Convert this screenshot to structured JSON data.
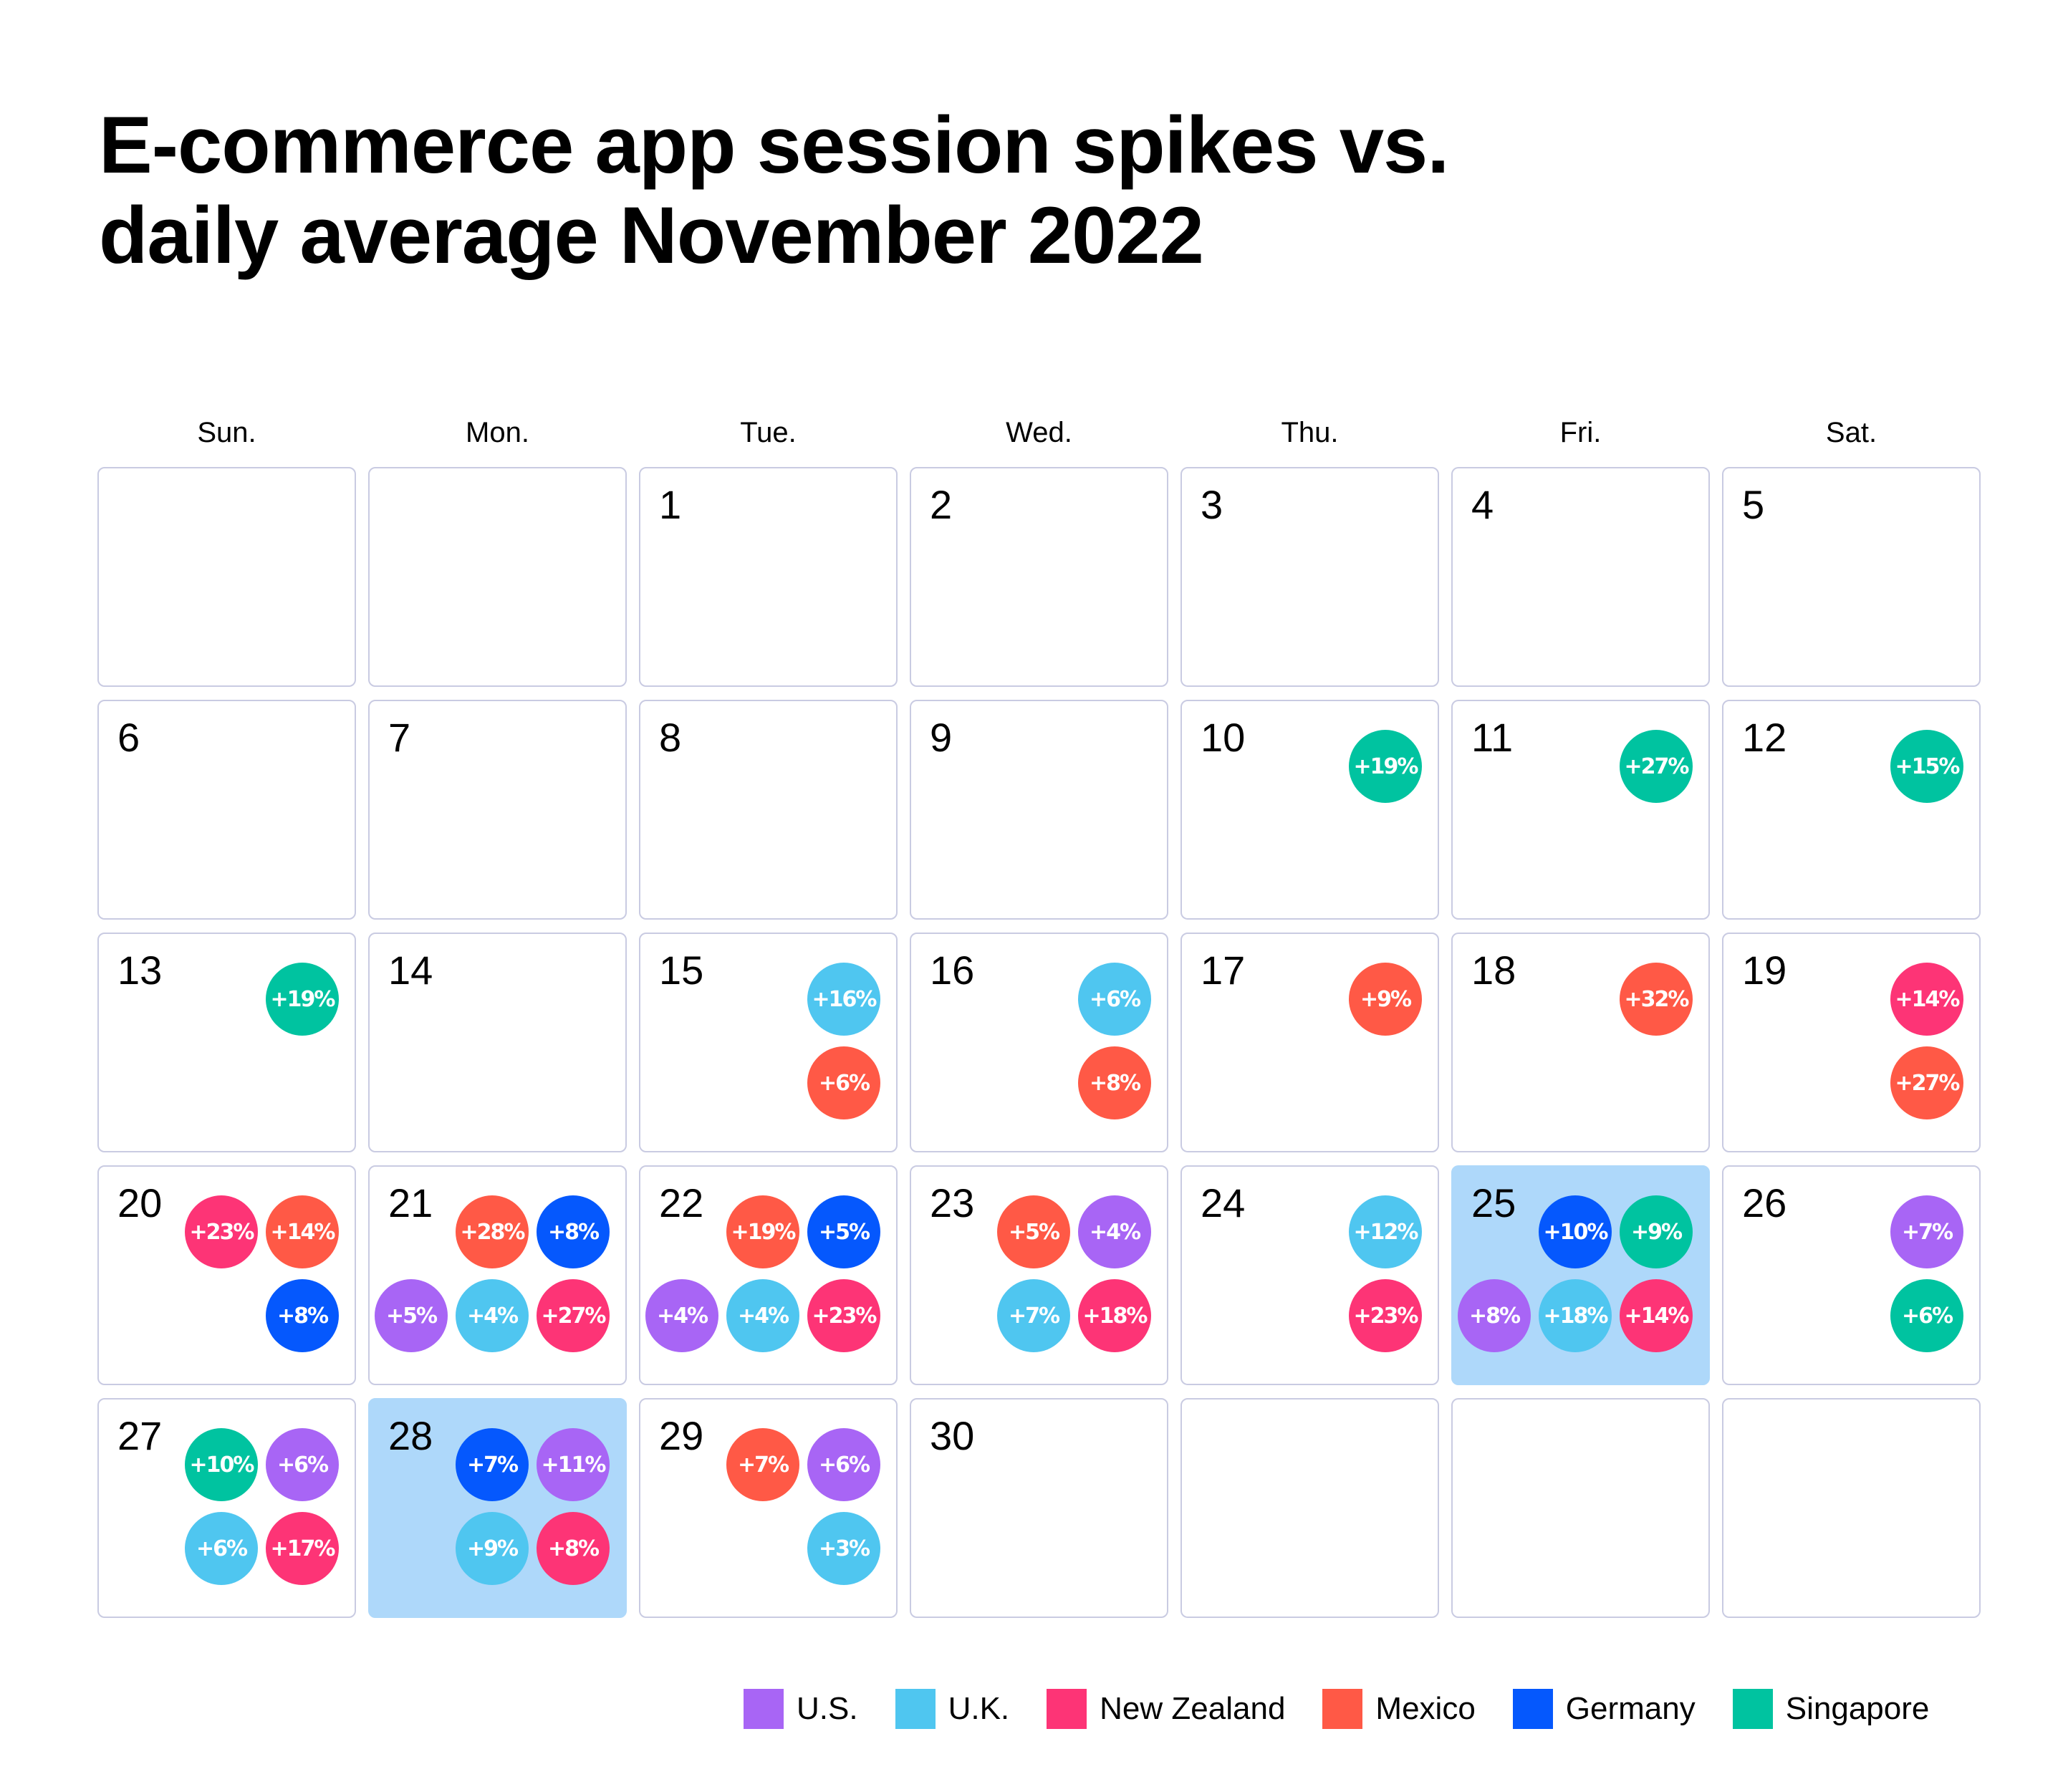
{
  "title": [
    "E-commerce app session spikes vs.",
    "daily average November 2022"
  ],
  "weekdays": [
    "Sun.",
    "Mon.",
    "Tue.",
    "Wed.",
    "Thu.",
    "Fri.",
    "Sat."
  ],
  "highlight_color": "#aed8fa",
  "colors": {
    "U.S.": "#a865f5",
    "U.K.": "#4fc6f0",
    "New Zealand": "#fd3476",
    "Mexico": "#ff5946",
    "Germany": "#0558fd",
    "Singapore": "#00c3a0"
  },
  "legend": [
    "U.S.",
    "U.K.",
    "New Zealand",
    "Mexico",
    "Germany",
    "Singapore"
  ],
  "chart_data": {
    "type": "table",
    "month": "November 2022",
    "first_weekday_index": 2,
    "days_in_month": 30,
    "highlighted_days": [
      25,
      28
    ],
    "days": {
      "10": [
        {
          "series": "Singapore",
          "label": "+19%",
          "value": 19
        }
      ],
      "11": [
        {
          "series": "Singapore",
          "label": "+27%",
          "value": 27
        }
      ],
      "12": [
        {
          "series": "Singapore",
          "label": "+15%",
          "value": 15
        }
      ],
      "13": [
        {
          "series": "Singapore",
          "label": "+19%",
          "value": 19
        }
      ],
      "15": [
        {
          "series": "U.K.",
          "label": "+16%",
          "value": 16
        },
        {
          "series": "Mexico",
          "label": "+6%",
          "value": 6
        }
      ],
      "16": [
        {
          "series": "U.K.",
          "label": "+6%",
          "value": 6
        },
        {
          "series": "Mexico",
          "label": "+8%",
          "value": 8
        }
      ],
      "17": [
        {
          "series": "Mexico",
          "label": "+9%",
          "value": 9
        }
      ],
      "18": [
        {
          "series": "Mexico",
          "label": "+32%",
          "value": 32
        }
      ],
      "19": [
        {
          "series": "New Zealand",
          "label": "+14%",
          "value": 14
        },
        {
          "series": "Mexico",
          "label": "+27%",
          "value": 27
        }
      ],
      "20": [
        {
          "series": "New Zealand",
          "label": "+23%",
          "value": 23
        },
        {
          "series": "Mexico",
          "label": "+14%",
          "value": 14
        },
        {
          "series": "Germany",
          "label": "+8%",
          "value": 8
        }
      ],
      "21": [
        {
          "series": "Mexico",
          "label": "+28%",
          "value": 28
        },
        {
          "series": "Germany",
          "label": "+8%",
          "value": 8
        },
        {
          "series": "U.S.",
          "label": "+5%",
          "value": 5
        },
        {
          "series": "U.K.",
          "label": "+4%",
          "value": 4
        },
        {
          "series": "New Zealand",
          "label": "+27%",
          "value": 27
        }
      ],
      "22": [
        {
          "series": "Mexico",
          "label": "+19%",
          "value": 19
        },
        {
          "series": "Germany",
          "label": "+5%",
          "value": 5
        },
        {
          "series": "U.S.",
          "label": "+4%",
          "value": 4
        },
        {
          "series": "U.K.",
          "label": "+4%",
          "value": 4
        },
        {
          "series": "New Zealand",
          "label": "+23%",
          "value": 23
        }
      ],
      "23": [
        {
          "series": "Mexico",
          "label": "+5%",
          "value": 5
        },
        {
          "series": "U.S.",
          "label": "+4%",
          "value": 4
        },
        {
          "series": "U.K.",
          "label": "+7%",
          "value": 7
        },
        {
          "series": "New Zealand",
          "label": "+18%",
          "value": 18
        }
      ],
      "24": [
        {
          "series": "U.K.",
          "label": "+12%",
          "value": 12
        },
        {
          "series": "New Zealand",
          "label": "+23%",
          "value": 23
        }
      ],
      "25": [
        {
          "series": "Germany",
          "label": "+10%",
          "value": 10
        },
        {
          "series": "Singapore",
          "label": "+9%",
          "value": 9
        },
        {
          "series": "U.S.",
          "label": "+8%",
          "value": 8
        },
        {
          "series": "U.K.",
          "label": "+18%",
          "value": 18
        },
        {
          "series": "New Zealand",
          "label": "+14%",
          "value": 14
        }
      ],
      "26": [
        {
          "series": "U.S.",
          "label": "+7%",
          "value": 7
        },
        {
          "series": "Singapore",
          "label": "+6%",
          "value": 6
        }
      ],
      "27": [
        {
          "series": "Singapore",
          "label": "+10%",
          "value": 10
        },
        {
          "series": "U.S.",
          "label": "+6%",
          "value": 6
        },
        {
          "series": "U.K.",
          "label": "+6%",
          "value": 6
        },
        {
          "series": "New Zealand",
          "label": "+17%",
          "value": 17
        }
      ],
      "28": [
        {
          "series": "Germany",
          "label": "+7%",
          "value": 7
        },
        {
          "series": "U.S.",
          "label": "+11%",
          "value": 11
        },
        {
          "series": "U.K.",
          "label": "+9%",
          "value": 9
        },
        {
          "series": "New Zealand",
          "label": "+8%",
          "value": 8
        }
      ],
      "29": [
        {
          "series": "Mexico",
          "label": "+7%",
          "value": 7
        },
        {
          "series": "U.S.",
          "label": "+6%",
          "value": 6
        },
        {
          "series": "U.K.",
          "label": "+3%",
          "value": 3
        }
      ]
    }
  }
}
